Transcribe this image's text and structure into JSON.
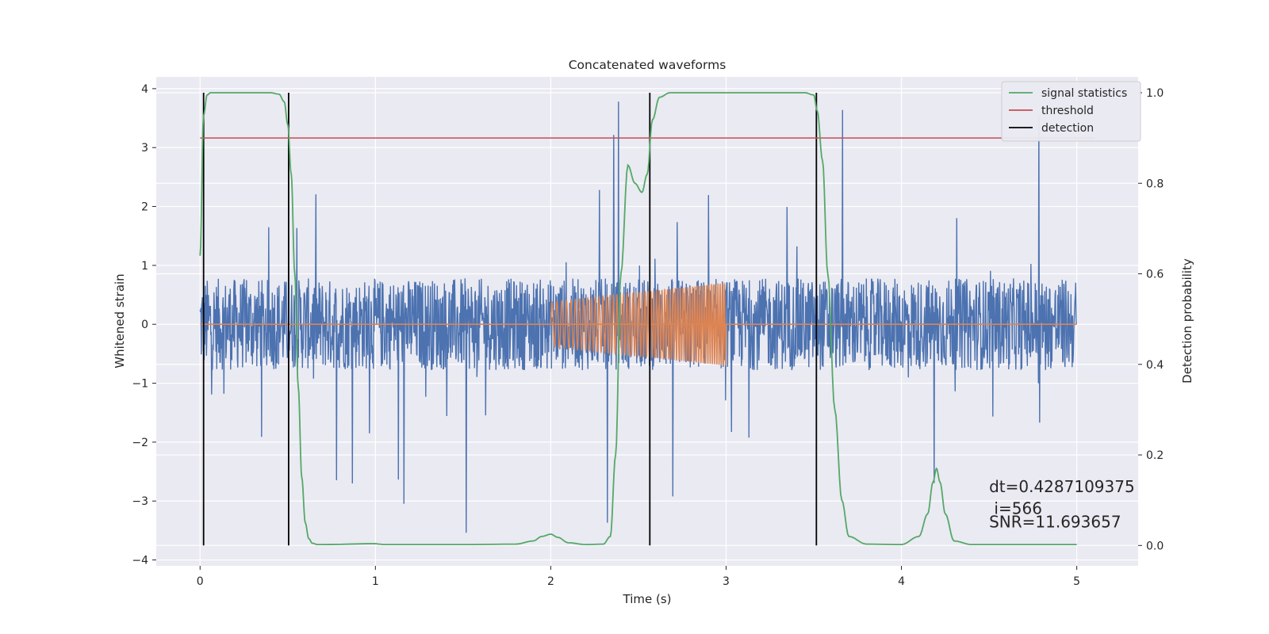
{
  "chart_data": {
    "type": "line",
    "title": "Concatenated waveforms",
    "xlabel": "Time (s)",
    "ylabel": "Whitened strain",
    "y2label": "Detection probability",
    "xlim": [
      -0.25,
      5.35
    ],
    "ylim": [
      -4.1,
      4.2
    ],
    "y2lim": [
      -0.045,
      1.035
    ],
    "xticks": [
      0,
      1,
      2,
      3,
      4,
      5
    ],
    "yticks": [
      -4,
      -3,
      -2,
      -1,
      0,
      1,
      2,
      3,
      4
    ],
    "y2ticks": [
      0.0,
      0.2,
      0.4,
      0.6,
      0.8,
      1.0
    ],
    "xtick_labels": [
      "0",
      "1",
      "2",
      "3",
      "4",
      "5"
    ],
    "ytick_labels": [
      "−4",
      "−3",
      "−2",
      "−1",
      "0",
      "1",
      "2",
      "3",
      "4"
    ],
    "y2tick_labels": [
      "0.0",
      "0.2",
      "0.4",
      "0.6",
      "0.8",
      "1.0"
    ],
    "grid": true,
    "legend_position": "top-right",
    "legend": [
      "signal statistics",
      "threshold",
      "detection"
    ],
    "series": [
      {
        "name": "strain noise",
        "axis": "left",
        "color": "#4c72b0",
        "style": "noise",
        "x_range": [
          0,
          5
        ],
        "core_amplitude": 0.78,
        "peak_amplitude": 3.8
      },
      {
        "name": "injected waveform",
        "axis": "left",
        "color": "#dd8452",
        "style": "chirp",
        "baseline_range": [
          0,
          5
        ],
        "chirp_range": [
          2.0,
          3.0
        ],
        "amplitude_start": 0.38,
        "amplitude_end": 0.7
      },
      {
        "name": "signal statistics",
        "axis": "right",
        "color": "#55a868",
        "x": [
          0,
          0.02,
          0.04,
          0.06,
          0.1,
          0.2,
          0.3,
          0.4,
          0.45,
          0.48,
          0.5,
          0.52,
          0.54,
          0.56,
          0.58,
          0.6,
          0.62,
          0.64,
          0.67,
          0.7,
          1.0,
          1.02,
          1.05,
          1.1,
          1.5,
          1.8,
          1.9,
          1.95,
          2.0,
          2.04,
          2.1,
          2.2,
          2.3,
          2.34,
          2.37,
          2.4,
          2.44,
          2.48,
          2.52,
          2.55,
          2.58,
          2.62,
          2.68,
          2.8,
          3.0,
          3.3,
          3.45,
          3.5,
          3.52,
          3.55,
          3.58,
          3.62,
          3.66,
          3.7,
          3.8,
          4.0,
          4.1,
          4.15,
          4.18,
          4.2,
          4.22,
          4.25,
          4.3,
          4.4,
          5.0
        ],
        "y": [
          0.64,
          0.95,
          0.995,
          1.0,
          1.0,
          1.0,
          1.0,
          1.0,
          0.997,
          0.98,
          0.93,
          0.82,
          0.6,
          0.35,
          0.15,
          0.05,
          0.015,
          0.005,
          0.002,
          0.002,
          0.004,
          0.003,
          0.002,
          0.002,
          0.002,
          0.003,
          0.01,
          0.02,
          0.025,
          0.018,
          0.006,
          0.002,
          0.003,
          0.02,
          0.2,
          0.6,
          0.84,
          0.8,
          0.78,
          0.82,
          0.94,
          0.99,
          1.0,
          1.0,
          1.0,
          1.0,
          1.0,
          0.995,
          0.96,
          0.85,
          0.6,
          0.3,
          0.1,
          0.02,
          0.003,
          0.002,
          0.02,
          0.07,
          0.14,
          0.17,
          0.14,
          0.07,
          0.01,
          0.002,
          0.002
        ]
      },
      {
        "name": "threshold",
        "axis": "right",
        "color": "#c44e52",
        "x": [
          0,
          5.1
        ],
        "y": [
          0.9,
          0.9
        ]
      }
    ],
    "detections": {
      "name": "detection",
      "color": "#000000",
      "x": [
        0.02,
        0.505,
        2.565,
        3.515
      ],
      "y_range": [
        0.0,
        1.0
      ]
    },
    "annotations": [
      {
        "text": "dt=0.4287109375",
        "x": 4.5,
        "y": -2.85
      },
      {
        "text": " i=566",
        "x": 4.5,
        "y": -3.22
      },
      {
        "text": "SNR=11.693657",
        "x": 4.5,
        "y": -3.45
      }
    ]
  }
}
